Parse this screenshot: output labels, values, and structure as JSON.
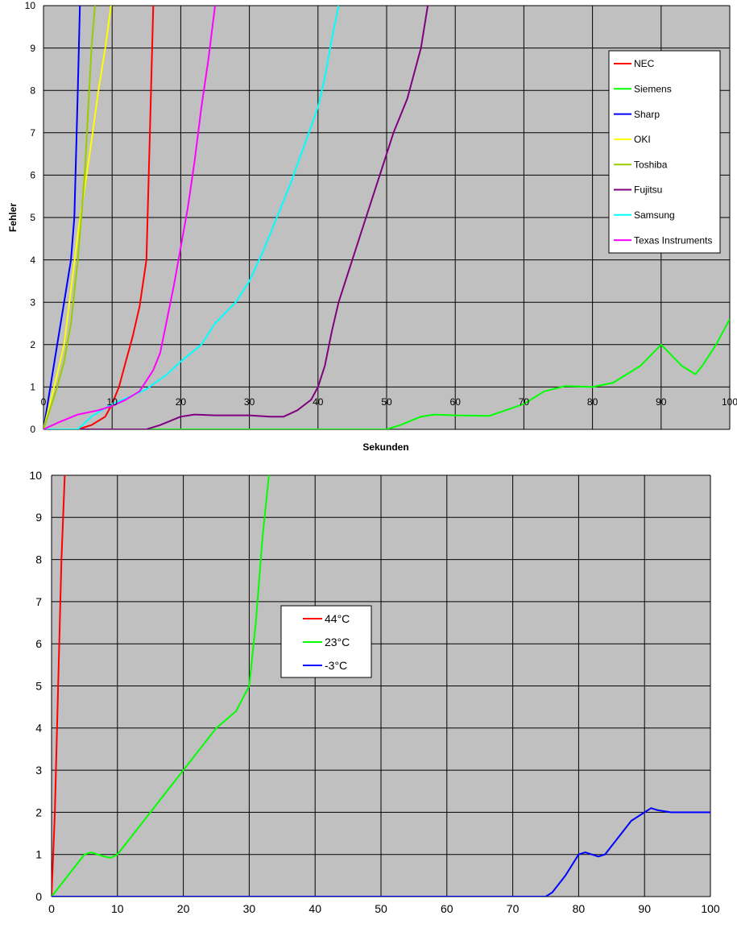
{
  "chart_data": [
    {
      "type": "line",
      "title": "",
      "xlabel": "Sekunden",
      "ylabel": "Fehler",
      "xlim": [
        0,
        100
      ],
      "ylim": [
        0,
        10
      ],
      "x_ticks": [
        0,
        10,
        20,
        30,
        40,
        50,
        60,
        70,
        80,
        90,
        100
      ],
      "y_ticks": [
        0,
        1,
        2,
        3,
        4,
        5,
        6,
        7,
        8,
        9,
        10
      ],
      "grid": true,
      "legend_position": "top-right",
      "series": [
        {
          "name": "NEC",
          "color": "#ff0000",
          "points": [
            [
              0,
              0
            ],
            [
              5,
              0
            ],
            [
              7,
              0.1
            ],
            [
              9,
              0.3
            ],
            [
              10,
              0.6
            ],
            [
              11,
              1
            ],
            [
              12,
              1.6
            ],
            [
              13,
              2.2
            ],
            [
              14,
              2.9
            ],
            [
              15,
              4
            ],
            [
              15.5,
              7
            ],
            [
              16,
              10
            ]
          ]
        },
        {
          "name": "Siemens",
          "color": "#00ff00",
          "points": [
            [
              0,
              0
            ],
            [
              50,
              0
            ],
            [
              52,
              0.1
            ],
            [
              55,
              0.3
            ],
            [
              57,
              0.35
            ],
            [
              60,
              0.33
            ],
            [
              65,
              0.32
            ],
            [
              70,
              0.6
            ],
            [
              73,
              0.9
            ],
            [
              76,
              1.02
            ],
            [
              80,
              1
            ],
            [
              83,
              1.1
            ],
            [
              87,
              1.5
            ],
            [
              90,
              2
            ],
            [
              93,
              1.5
            ],
            [
              95,
              1.3
            ],
            [
              96,
              1.5
            ],
            [
              98,
              2
            ],
            [
              100,
              2.6
            ]
          ]
        },
        {
          "name": "Sharp",
          "color": "#0000ff",
          "points": [
            [
              0,
              0
            ],
            [
              2,
              2
            ],
            [
              3,
              3
            ],
            [
              4,
              4
            ],
            [
              4.5,
              5
            ],
            [
              5,
              8
            ],
            [
              5.3,
              10
            ]
          ]
        },
        {
          "name": "OKI",
          "color": "#ffff00",
          "points": [
            [
              0,
              0
            ],
            [
              2,
              1.3
            ],
            [
              3,
              2
            ],
            [
              4,
              3.3
            ],
            [
              5,
              4.6
            ],
            [
              6,
              5.7
            ],
            [
              7,
              6.8
            ],
            [
              8,
              8
            ],
            [
              9,
              9
            ],
            [
              10,
              10.2
            ],
            [
              11,
              11.2
            ]
          ]
        },
        {
          "name": "Toshiba",
          "color": "#99cc00",
          "points": [
            [
              0,
              0
            ],
            [
              2,
              1
            ],
            [
              3,
              1.6
            ],
            [
              4,
              2.5
            ],
            [
              5,
              4
            ],
            [
              6,
              6
            ],
            [
              7,
              9
            ],
            [
              7.5,
              10
            ]
          ]
        },
        {
          "name": "Fujitsu",
          "color": "#800080",
          "points": [
            [
              0,
              0
            ],
            [
              15,
              0
            ],
            [
              17,
              0.1
            ],
            [
              20,
              0.3
            ],
            [
              22,
              0.35
            ],
            [
              25,
              0.33
            ],
            [
              30,
              0.33
            ],
            [
              33,
              0.3
            ],
            [
              35,
              0.3
            ],
            [
              37,
              0.45
            ],
            [
              39,
              0.7
            ],
            [
              40,
              1
            ],
            [
              41,
              1.5
            ],
            [
              42,
              2.3
            ],
            [
              43,
              3
            ],
            [
              45,
              4
            ],
            [
              47,
              5
            ],
            [
              49,
              6
            ],
            [
              51,
              7
            ],
            [
              53,
              7.8
            ],
            [
              54,
              8.4
            ],
            [
              55,
              9
            ],
            [
              56,
              10
            ]
          ]
        },
        {
          "name": "Samsung",
          "color": "#00ffff",
          "points": [
            [
              0,
              0
            ],
            [
              5,
              0
            ],
            [
              7,
              0.3
            ],
            [
              10,
              0.6
            ],
            [
              13,
              0.8
            ],
            [
              15,
              0.95
            ],
            [
              18,
              1.3
            ],
            [
              20,
              1.6
            ],
            [
              23,
              2
            ],
            [
              25,
              2.5
            ],
            [
              28,
              3
            ],
            [
              30,
              3.5
            ],
            [
              32,
              4.2
            ],
            [
              34,
              5
            ],
            [
              36,
              5.8
            ],
            [
              38,
              6.7
            ],
            [
              40,
              7.6
            ],
            [
              41,
              8.3
            ],
            [
              42,
              9.2
            ],
            [
              43,
              10
            ]
          ]
        },
        {
          "name": "Texas Instruments",
          "color": "#ff00ff",
          "points": [
            [
              0,
              0
            ],
            [
              2,
              0.15
            ],
            [
              5,
              0.35
            ],
            [
              8,
              0.45
            ],
            [
              10,
              0.55
            ],
            [
              12,
              0.7
            ],
            [
              14,
              0.9
            ],
            [
              16,
              1.4
            ],
            [
              17,
              1.8
            ],
            [
              18,
              2.6
            ],
            [
              19,
              3.4
            ],
            [
              20,
              4.3
            ],
            [
              21,
              5.2
            ],
            [
              22,
              6.3
            ],
            [
              23,
              7.6
            ],
            [
              24,
              8.7
            ],
            [
              25,
              10
            ]
          ]
        }
      ]
    },
    {
      "type": "line",
      "title": "",
      "xlabel": "",
      "ylabel": "",
      "xlim": [
        0,
        100
      ],
      "ylim": [
        0,
        10
      ],
      "x_ticks": [
        0,
        10,
        20,
        30,
        40,
        50,
        60,
        70,
        80,
        90,
        100
      ],
      "y_ticks": [
        0,
        1,
        2,
        3,
        4,
        5,
        6,
        7,
        8,
        9,
        10
      ],
      "grid": true,
      "legend_position": "center",
      "series": [
        {
          "name": "44°C",
          "color": "#ff0000",
          "points": [
            [
              0,
              0
            ],
            [
              0.5,
              2
            ],
            [
              1,
              5
            ],
            [
              1.5,
              8
            ],
            [
              2,
              10
            ]
          ]
        },
        {
          "name": "23°C",
          "color": "#00ff00",
          "points": [
            [
              0,
              0
            ],
            [
              1,
              0.2
            ],
            [
              3,
              0.6
            ],
            [
              5,
              1
            ],
            [
              6,
              1.05
            ],
            [
              8,
              0.95
            ],
            [
              9,
              0.92
            ],
            [
              10,
              1
            ],
            [
              12,
              1.4
            ],
            [
              15,
              2
            ],
            [
              20,
              3
            ],
            [
              25,
              4
            ],
            [
              28,
              4.4
            ],
            [
              30,
              5
            ],
            [
              31,
              6.5
            ],
            [
              32,
              8.5
            ],
            [
              33,
              10
            ]
          ]
        },
        {
          "name": "-3°C",
          "color": "#0000ff",
          "points": [
            [
              0,
              0
            ],
            [
              75,
              0
            ],
            [
              76,
              0.1
            ],
            [
              78,
              0.5
            ],
            [
              80,
              1
            ],
            [
              81,
              1.05
            ],
            [
              83,
              0.95
            ],
            [
              84,
              1
            ],
            [
              86,
              1.4
            ],
            [
              88,
              1.8
            ],
            [
              90,
              2
            ],
            [
              91,
              2.1
            ],
            [
              92,
              2.05
            ],
            [
              94,
              2
            ],
            [
              100,
              2
            ]
          ]
        }
      ]
    }
  ]
}
